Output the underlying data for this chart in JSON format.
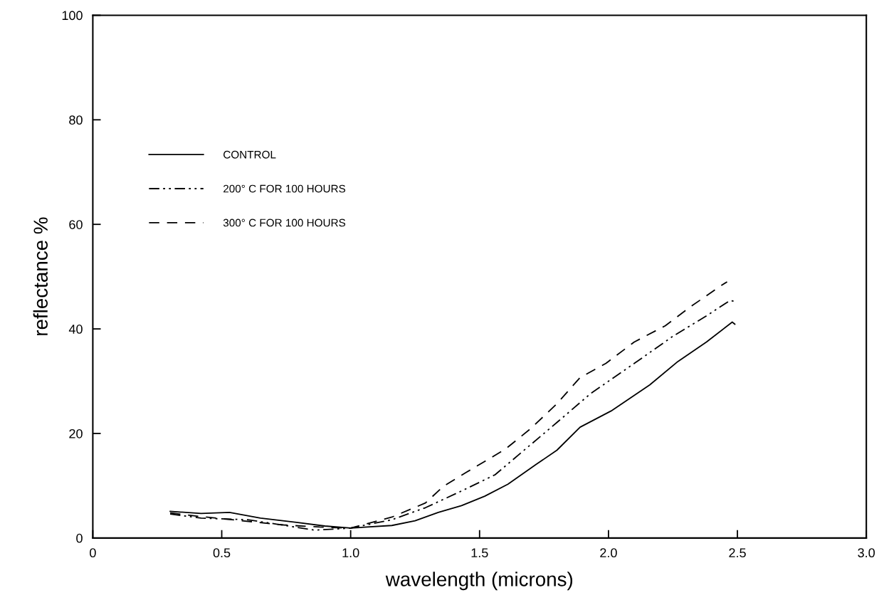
{
  "chart_data": {
    "type": "line",
    "xlabel": "wavelength (microns)",
    "ylabel": "reflectance %",
    "xlim": [
      0,
      3
    ],
    "ylim": [
      0,
      100
    ],
    "xticks": [
      0,
      0.5,
      {
        "value": 1,
        "label": "1.0"
      },
      1.5,
      {
        "value": 2,
        "label": "2.0"
      },
      2.5,
      {
        "value": 3,
        "label": "3.0"
      }
    ],
    "yticks": [
      0,
      20,
      40,
      60,
      80,
      100
    ],
    "grid": false,
    "legend": "top left",
    "marker": "none",
    "series": [
      {
        "name": "CONTROL",
        "color": "#000000",
        "line_style": "solid",
        "x": [
          0.3,
          0.42,
          0.53,
          0.65,
          0.79,
          0.9,
          1.0,
          1.16,
          1.25,
          1.34,
          1.43,
          1.52,
          1.61,
          1.72,
          1.8,
          1.89,
          2.01,
          2.16,
          2.27,
          2.38,
          2.48,
          2.49
        ],
        "values": [
          5.1,
          4.7,
          4.9,
          3.8,
          3.0,
          2.3,
          1.9,
          2.4,
          3.3,
          4.9,
          6.2,
          8.0,
          10.3,
          14.1,
          16.8,
          21.2,
          24.3,
          29.3,
          33.8,
          37.5,
          41.3,
          40.9
        ]
      },
      {
        "name": "200° C FOR 100 HOURS",
        "color": "#000000",
        "line_style": "dashdot",
        "x": [
          0.3,
          0.42,
          0.6,
          0.72,
          0.86,
          1.0,
          1.16,
          1.29,
          1.43,
          1.56,
          1.8,
          1.93,
          2.1,
          2.25,
          2.38,
          2.47,
          2.49
        ],
        "values": [
          4.6,
          3.8,
          3.5,
          2.6,
          1.5,
          1.9,
          3.5,
          5.8,
          9.0,
          12.1,
          22.1,
          27.6,
          33.4,
          38.6,
          42.5,
          45.4,
          45.3
        ]
      },
      {
        "name": "300° C FOR 100 HOURS",
        "color": "#000000",
        "line_style": "dashed",
        "x": [
          0.3,
          0.42,
          0.74,
          0.88,
          1.0,
          1.16,
          1.29,
          1.36,
          1.45,
          1.6,
          1.7,
          1.8,
          1.89,
          1.99,
          2.1,
          2.22,
          2.32,
          2.44,
          2.46
        ],
        "values": [
          4.8,
          4.1,
          2.5,
          2.1,
          1.9,
          4.0,
          6.7,
          9.9,
          12.6,
          17.0,
          21.0,
          25.7,
          30.7,
          33.4,
          37.5,
          40.6,
          44.3,
          48.4,
          49.0
        ]
      }
    ]
  }
}
